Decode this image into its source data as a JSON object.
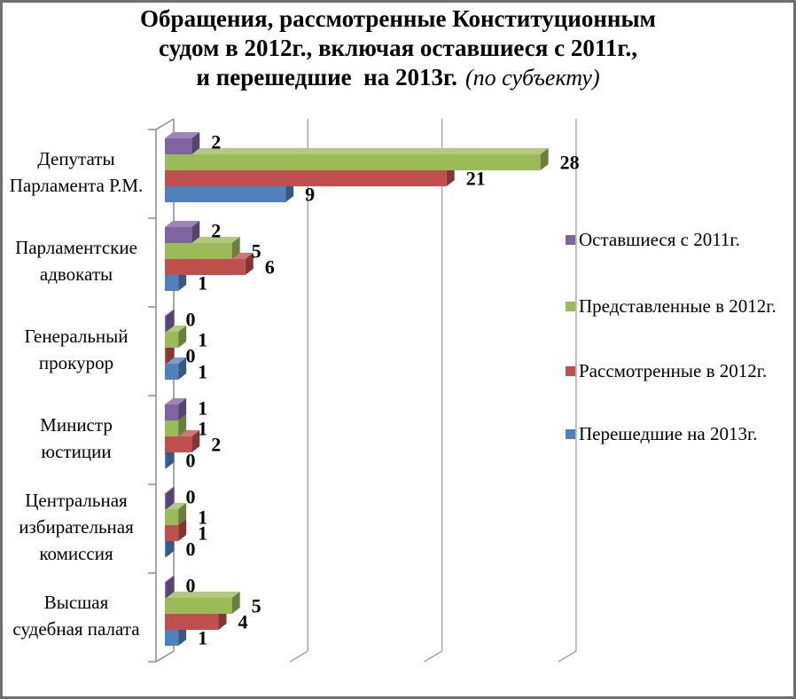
{
  "title": {
    "line1": "Обращения, рассмотренные Конституционным",
    "line2": "судом в 2012г., включая оставшиеся с 2011г.,",
    "line3_bold": "и перешедшие  на 2013г.",
    "line3_italic": "(по субъекту)"
  },
  "legend": {
    "items": [
      {
        "label": "Оставшиеся с 2011г.",
        "color": "#8064A2"
      },
      {
        "label": "Представленные в 2012г.",
        "color": "#9BBB59"
      },
      {
        "label": "Рассмотренные в 2012г.",
        "color": "#C0504D"
      },
      {
        "label": "Перешедшие на 2013г.",
        "color": "#4F81BD"
      }
    ]
  },
  "chart_data": {
    "type": "bar",
    "orientation": "horizontal",
    "style": "3d",
    "title": "Обращения, рассмотренные Конституционным судом в 2012г., включая оставшиеся с 2011г., и перешедшие на 2013г. (по субъекту)",
    "categories": [
      "Депутаты Парламента Р.М.",
      "Парламентские адвокаты",
      "Генеральный прокурор",
      "Министр юстиции",
      "Центральная избирательная комиссия",
      "Высшая судебная палата"
    ],
    "category_label_lines": [
      [
        "Депутаты",
        "Парламента Р.М."
      ],
      [
        "Парламентские",
        "адвокаты"
      ],
      [
        "Генеральный",
        "прокурор"
      ],
      [
        "Министр",
        "юстиции"
      ],
      [
        "Центральная",
        "избирательная",
        "комиссия"
      ],
      [
        "Высшая",
        "судебная палата"
      ]
    ],
    "series": [
      {
        "name": "Оставшиеся с 2011г.",
        "color": "#8064A2",
        "values": [
          2,
          2,
          0,
          1,
          0,
          0
        ]
      },
      {
        "name": "Представленные в 2012г.",
        "color": "#9BBB59",
        "values": [
          28,
          5,
          1,
          1,
          1,
          5
        ]
      },
      {
        "name": "Рассмотренные в 2012г.",
        "color": "#C0504D",
        "values": [
          21,
          6,
          0,
          2,
          1,
          4
        ]
      },
      {
        "name": "Перешедшие на 2013г.",
        "color": "#4F81BD",
        "values": [
          9,
          1,
          1,
          0,
          0,
          1
        ]
      }
    ],
    "data_labels": true,
    "xlim": [
      0,
      30
    ],
    "gridline_values": [
      10,
      20,
      30
    ],
    "legend_position": "right",
    "grid_color": "#A3A3A3",
    "axis_color": "#8C8C8C",
    "border_color": "#6F6F6F",
    "text_color": "#000000",
    "background_color": "#FFFFFF"
  }
}
